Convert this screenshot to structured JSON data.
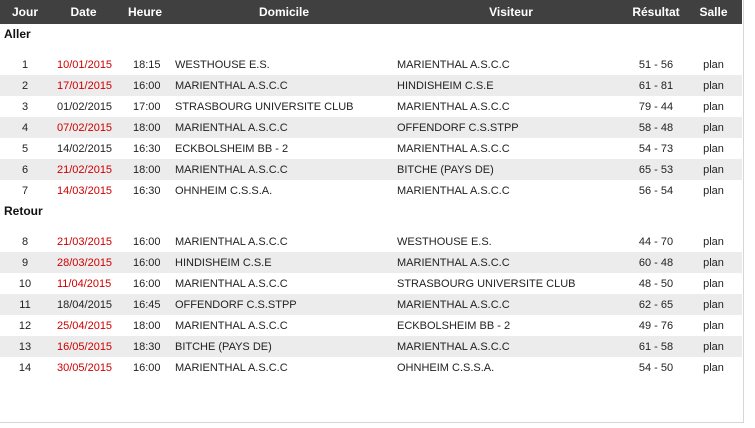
{
  "header": {
    "jour": "Jour",
    "date": "Date",
    "heure": "Heure",
    "domicile": "Domicile",
    "visiteur": "Visiteur",
    "resultat": "Résultat",
    "salle": "Salle"
  },
  "sections": {
    "aller": "Aller",
    "retour": "Retour"
  },
  "colors": {
    "header_bg": "#404040",
    "date_highlight": "#cc0000",
    "alt_row": "#ececec"
  },
  "aller": [
    {
      "jour": "1",
      "date": "10/01/2015",
      "heure": "18:15",
      "domicile": "WESTHOUSE E.S.",
      "visiteur": "MARIENTHAL A.S.C.C",
      "resultat": "51 - 56",
      "salle": "plan"
    },
    {
      "jour": "2",
      "date": "17/01/2015",
      "heure": "16:00",
      "domicile": "MARIENTHAL A.S.C.C",
      "visiteur": "HINDISHEIM C.S.E",
      "resultat": "61 - 81",
      "salle": "plan"
    },
    {
      "jour": "3",
      "date": "01/02/2015",
      "heure": "17:00",
      "domicile": "STRASBOURG UNIVERSITE CLUB",
      "visiteur": "MARIENTHAL A.S.C.C",
      "resultat": "79 - 44",
      "salle": "plan"
    },
    {
      "jour": "4",
      "date": "07/02/2015",
      "heure": "18:00",
      "domicile": "MARIENTHAL A.S.C.C",
      "visiteur": "OFFENDORF C.S.STPP",
      "resultat": "58 - 48",
      "salle": "plan"
    },
    {
      "jour": "5",
      "date": "14/02/2015",
      "heure": "16:30",
      "domicile": "ECKBOLSHEIM BB - 2",
      "visiteur": "MARIENTHAL A.S.C.C",
      "resultat": "54 - 73",
      "salle": "plan"
    },
    {
      "jour": "6",
      "date": "21/02/2015",
      "heure": "18:00",
      "domicile": "MARIENTHAL A.S.C.C",
      "visiteur": "BITCHE (PAYS DE)",
      "resultat": "65 - 53",
      "salle": "plan"
    },
    {
      "jour": "7",
      "date": "14/03/2015",
      "heure": "16:30",
      "domicile": "OHNHEIM C.S.S.A.",
      "visiteur": "MARIENTHAL A.S.C.C",
      "resultat": "56 - 54",
      "salle": "plan"
    }
  ],
  "retour": [
    {
      "jour": "8",
      "date": "21/03/2015",
      "heure": "16:00",
      "domicile": "MARIENTHAL A.S.C.C",
      "visiteur": "WESTHOUSE E.S.",
      "resultat": "44 - 70",
      "salle": "plan"
    },
    {
      "jour": "9",
      "date": "28/03/2015",
      "heure": "16:00",
      "domicile": "HINDISHEIM C.S.E",
      "visiteur": "MARIENTHAL A.S.C.C",
      "resultat": "60 - 48",
      "salle": "plan"
    },
    {
      "jour": "10",
      "date": "11/04/2015",
      "heure": "16:00",
      "domicile": "MARIENTHAL A.S.C.C",
      "visiteur": "STRASBOURG UNIVERSITE CLUB",
      "resultat": "48 - 50",
      "salle": "plan"
    },
    {
      "jour": "11",
      "date": "18/04/2015",
      "heure": "16:45",
      "domicile": "OFFENDORF C.S.STPP",
      "visiteur": "MARIENTHAL A.S.C.C",
      "resultat": "62 - 65",
      "salle": "plan"
    },
    {
      "jour": "12",
      "date": "25/04/2015",
      "heure": "18:00",
      "domicile": "MARIENTHAL A.S.C.C",
      "visiteur": "ECKBOLSHEIM BB - 2",
      "resultat": "49 - 76",
      "salle": "plan"
    },
    {
      "jour": "13",
      "date": "16/05/2015",
      "heure": "18:30",
      "domicile": "BITCHE (PAYS DE)",
      "visiteur": "MARIENTHAL A.S.C.C",
      "resultat": "61 - 58",
      "salle": "plan"
    },
    {
      "jour": "14",
      "date": "30/05/2015",
      "heure": "16:00",
      "domicile": "MARIENTHAL A.S.C.C",
      "visiteur": "OHNHEIM C.S.S.A.",
      "resultat": "54 - 50",
      "salle": "plan"
    }
  ]
}
